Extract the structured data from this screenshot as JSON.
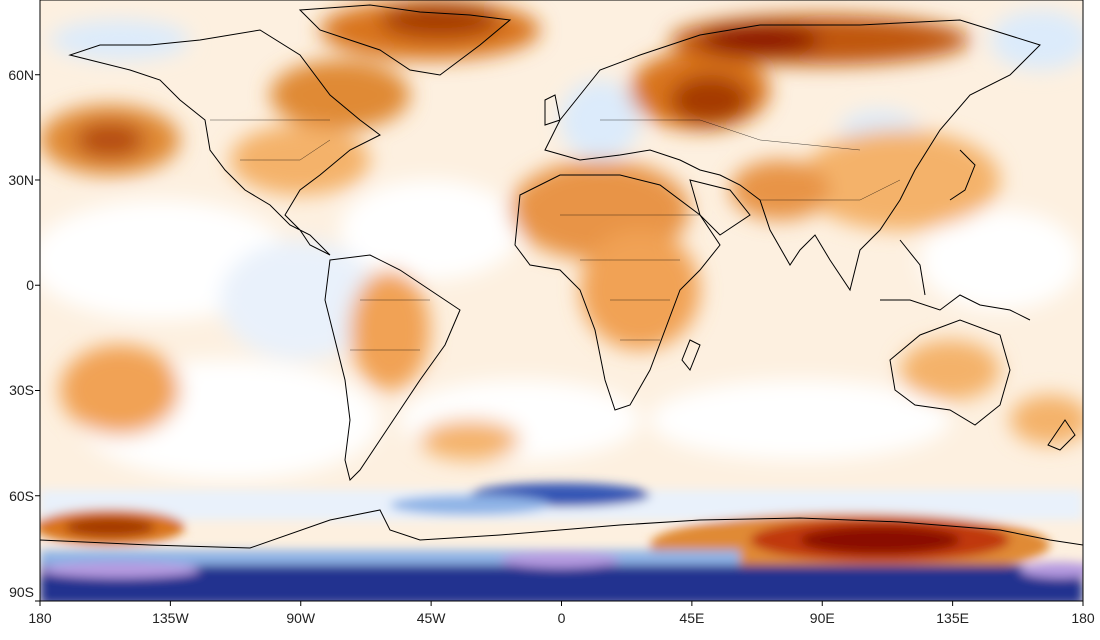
{
  "map": {
    "projection": "equirectangular",
    "colors": {
      "warm_light": "#fde5c5",
      "warm_mid": "#f1a255",
      "warm_strong": "#d9741f",
      "warm_deep": "#a53b06",
      "warm_extreme": "#8a0b00",
      "neutral": "#ffffff",
      "cool_light": "#dcebfb",
      "cool_mid": "#8fb4e6",
      "cool_strong": "#3457b5",
      "cool_deep": "#22338f",
      "cool_extreme": "#b59ae0",
      "coastline": "#000000"
    },
    "lat_ticks": [
      {
        "label": "60N",
        "value": 60
      },
      {
        "label": "30N",
        "value": 30
      },
      {
        "label": "0",
        "value": 0
      },
      {
        "label": "30S",
        "value": -30
      },
      {
        "label": "60S",
        "value": -60
      },
      {
        "label": "90S",
        "value": -90
      }
    ],
    "lon_ticks": [
      {
        "label": "180",
        "value": -180
      },
      {
        "label": "135W",
        "value": -135
      },
      {
        "label": "90W",
        "value": -90
      },
      {
        "label": "45W",
        "value": -45
      },
      {
        "label": "0",
        "value": 0
      },
      {
        "label": "45E",
        "value": 45
      },
      {
        "label": "90E",
        "value": 90
      },
      {
        "label": "135E",
        "value": 135
      },
      {
        "label": "180",
        "value": 180
      }
    ]
  }
}
